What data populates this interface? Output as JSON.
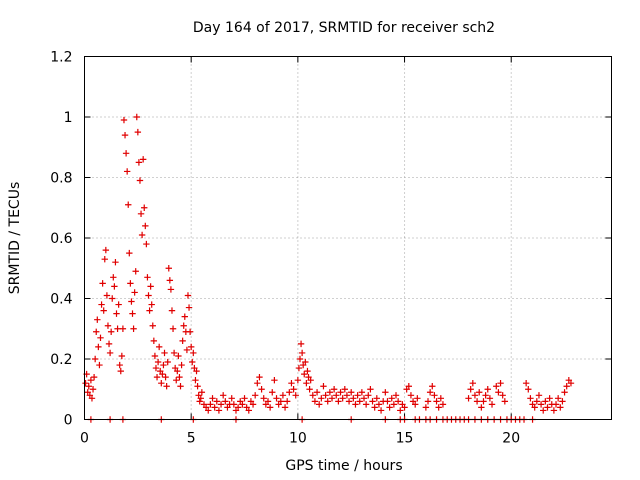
{
  "chart_data": {
    "type": "scatter",
    "title": "Day 164 of 2017, SRMTID for receiver sch2",
    "xlabel": "GPS time / hours",
    "ylabel": "SRMTID / TECUs",
    "xlim": [
      0,
      24.7
    ],
    "ylim": [
      0,
      1.2
    ],
    "xticks": [
      0,
      5,
      10,
      15,
      20
    ],
    "xtick_labels": [
      "0",
      "5",
      "10",
      "15",
      "20"
    ],
    "yticks": [
      0,
      0.2,
      0.4,
      0.6,
      0.8,
      1.0,
      1.2
    ],
    "ytick_labels": [
      "0",
      "0.2",
      "0.4",
      "0.6",
      "0.8",
      "1",
      "1.2"
    ],
    "grid": true,
    "marker": "+",
    "marker_color": "#e00000",
    "series": [
      {
        "name": "SRMTID",
        "points": [
          [
            0.05,
            0.12
          ],
          [
            0.1,
            0.15
          ],
          [
            0.15,
            0.09
          ],
          [
            0.2,
            0.11
          ],
          [
            0.25,
            0.08
          ],
          [
            0.3,
            0.13
          ],
          [
            0.35,
            0.07
          ],
          [
            0.4,
            0.1
          ],
          [
            0.45,
            0.14
          ],
          [
            0.5,
            0.2
          ],
          [
            0.55,
            0.29
          ],
          [
            0.6,
            0.33
          ],
          [
            0.65,
            0.24
          ],
          [
            0.7,
            0.18
          ],
          [
            0.75,
            0.27
          ],
          [
            0.8,
            0.38
          ],
          [
            0.85,
            0.45
          ],
          [
            0.9,
            0.36
          ],
          [
            0.95,
            0.53
          ],
          [
            1.0,
            0.56
          ],
          [
            1.05,
            0.41
          ],
          [
            1.1,
            0.31
          ],
          [
            1.15,
            0.25
          ],
          [
            1.2,
            0.22
          ],
          [
            1.25,
            0.29
          ],
          [
            1.3,
            0.4
          ],
          [
            1.35,
            0.47
          ],
          [
            1.4,
            0.44
          ],
          [
            1.45,
            0.52
          ],
          [
            1.5,
            0.35
          ],
          [
            1.55,
            0.3
          ],
          [
            1.6,
            0.38
          ],
          [
            1.65,
            0.18
          ],
          [
            1.7,
            0.16
          ],
          [
            1.75,
            0.21
          ],
          [
            1.8,
            0.3
          ],
          [
            1.85,
            0.99
          ],
          [
            1.9,
            0.94
          ],
          [
            1.95,
            0.88
          ],
          [
            2.0,
            0.82
          ],
          [
            2.05,
            0.71
          ],
          [
            2.1,
            0.55
          ],
          [
            2.15,
            0.45
          ],
          [
            2.2,
            0.39
          ],
          [
            2.25,
            0.35
          ],
          [
            2.3,
            0.3
          ],
          [
            2.35,
            0.42
          ],
          [
            2.4,
            0.49
          ],
          [
            2.45,
            1.0
          ],
          [
            2.5,
            0.95
          ],
          [
            2.55,
            0.85
          ],
          [
            2.6,
            0.79
          ],
          [
            2.65,
            0.68
          ],
          [
            2.7,
            0.61
          ],
          [
            2.75,
            0.86
          ],
          [
            2.8,
            0.7
          ],
          [
            2.85,
            0.64
          ],
          [
            2.9,
            0.58
          ],
          [
            2.95,
            0.47
          ],
          [
            3.0,
            0.41
          ],
          [
            3.05,
            0.36
          ],
          [
            3.1,
            0.44
          ],
          [
            3.15,
            0.38
          ],
          [
            3.2,
            0.31
          ],
          [
            3.25,
            0.26
          ],
          [
            3.3,
            0.21
          ],
          [
            3.35,
            0.17
          ],
          [
            3.4,
            0.14
          ],
          [
            3.45,
            0.19
          ],
          [
            3.5,
            0.24
          ],
          [
            3.55,
            0.16
          ],
          [
            3.6,
            0.12
          ],
          [
            3.65,
            0.15
          ],
          [
            3.7,
            0.18
          ],
          [
            3.75,
            0.22
          ],
          [
            3.8,
            0.14
          ],
          [
            3.85,
            0.11
          ],
          [
            3.9,
            0.19
          ],
          [
            3.95,
            0.5
          ],
          [
            4.0,
            0.46
          ],
          [
            4.05,
            0.43
          ],
          [
            4.1,
            0.36
          ],
          [
            4.15,
            0.3
          ],
          [
            4.2,
            0.22
          ],
          [
            4.25,
            0.17
          ],
          [
            4.3,
            0.13
          ],
          [
            4.35,
            0.16
          ],
          [
            4.4,
            0.21
          ],
          [
            4.45,
            0.14
          ],
          [
            4.5,
            0.11
          ],
          [
            4.55,
            0.18
          ],
          [
            4.6,
            0.26
          ],
          [
            4.65,
            0.31
          ],
          [
            4.7,
            0.34
          ],
          [
            4.75,
            0.29
          ],
          [
            4.8,
            0.23
          ],
          [
            4.85,
            0.41
          ],
          [
            4.9,
            0.37
          ],
          [
            4.95,
            0.29
          ],
          [
            5.0,
            0.24
          ],
          [
            5.05,
            0.19
          ],
          [
            5.1,
            0.22
          ],
          [
            5.15,
            0.17
          ],
          [
            5.2,
            0.13
          ],
          [
            5.25,
            0.16
          ],
          [
            5.3,
            0.11
          ],
          [
            5.35,
            0.08
          ],
          [
            5.4,
            0.06
          ],
          [
            5.45,
            0.07
          ],
          [
            5.5,
            0.09
          ],
          [
            5.6,
            0.05
          ],
          [
            5.7,
            0.04
          ],
          [
            5.8,
            0.03
          ],
          [
            5.9,
            0.05
          ],
          [
            6.0,
            0.07
          ],
          [
            6.1,
            0.04
          ],
          [
            6.2,
            0.06
          ],
          [
            6.3,
            0.03
          ],
          [
            6.4,
            0.05
          ],
          [
            6.5,
            0.08
          ],
          [
            6.6,
            0.06
          ],
          [
            6.7,
            0.04
          ],
          [
            6.8,
            0.05
          ],
          [
            6.9,
            0.07
          ],
          [
            7.0,
            0.05
          ],
          [
            7.1,
            0.03
          ],
          [
            7.2,
            0.04
          ],
          [
            7.3,
            0.06
          ],
          [
            7.4,
            0.05
          ],
          [
            7.5,
            0.07
          ],
          [
            7.6,
            0.04
          ],
          [
            7.7,
            0.03
          ],
          [
            7.8,
            0.06
          ],
          [
            7.9,
            0.05
          ],
          [
            8.0,
            0.08
          ],
          [
            8.1,
            0.12
          ],
          [
            8.2,
            0.14
          ],
          [
            8.3,
            0.1
          ],
          [
            8.4,
            0.07
          ],
          [
            8.5,
            0.05
          ],
          [
            8.6,
            0.06
          ],
          [
            8.7,
            0.04
          ],
          [
            8.8,
            0.09
          ],
          [
            8.9,
            0.13
          ],
          [
            9.0,
            0.07
          ],
          [
            9.1,
            0.05
          ],
          [
            9.2,
            0.06
          ],
          [
            9.3,
            0.08
          ],
          [
            9.4,
            0.04
          ],
          [
            9.5,
            0.06
          ],
          [
            9.6,
            0.09
          ],
          [
            9.7,
            0.12
          ],
          [
            9.8,
            0.1
          ],
          [
            9.9,
            0.08
          ],
          [
            10.0,
            0.13
          ],
          [
            10.05,
            0.17
          ],
          [
            10.1,
            0.2
          ],
          [
            10.15,
            0.25
          ],
          [
            10.2,
            0.22
          ],
          [
            10.25,
            0.18
          ],
          [
            10.3,
            0.15
          ],
          [
            10.35,
            0.19
          ],
          [
            10.4,
            0.12
          ],
          [
            10.45,
            0.16
          ],
          [
            10.5,
            0.14
          ],
          [
            10.55,
            0.1
          ],
          [
            10.6,
            0.13
          ],
          [
            10.7,
            0.08
          ],
          [
            10.8,
            0.06
          ],
          [
            10.9,
            0.09
          ],
          [
            11.0,
            0.05
          ],
          [
            11.1,
            0.07
          ],
          [
            11.2,
            0.11
          ],
          [
            11.3,
            0.08
          ],
          [
            11.4,
            0.06
          ],
          [
            11.5,
            0.09
          ],
          [
            11.6,
            0.07
          ],
          [
            11.7,
            0.1
          ],
          [
            11.8,
            0.08
          ],
          [
            11.9,
            0.06
          ],
          [
            12.0,
            0.09
          ],
          [
            12.1,
            0.07
          ],
          [
            12.2,
            0.1
          ],
          [
            12.3,
            0.08
          ],
          [
            12.4,
            0.06
          ],
          [
            12.5,
            0.09
          ],
          [
            12.6,
            0.07
          ],
          [
            12.7,
            0.05
          ],
          [
            12.8,
            0.08
          ],
          [
            12.9,
            0.06
          ],
          [
            13.0,
            0.09
          ],
          [
            13.1,
            0.07
          ],
          [
            13.2,
            0.05
          ],
          [
            13.3,
            0.08
          ],
          [
            13.4,
            0.1
          ],
          [
            13.5,
            0.06
          ],
          [
            13.6,
            0.04
          ],
          [
            13.7,
            0.07
          ],
          [
            13.8,
            0.05
          ],
          [
            13.9,
            0.03
          ],
          [
            14.0,
            0.06
          ],
          [
            14.1,
            0.09
          ],
          [
            14.2,
            0.06
          ],
          [
            14.3,
            0.04
          ],
          [
            14.4,
            0.07
          ],
          [
            14.5,
            0.05
          ],
          [
            14.6,
            0.08
          ],
          [
            14.7,
            0.06
          ],
          [
            14.8,
            0.03
          ],
          [
            14.9,
            0.05
          ],
          [
            15.0,
            0.04
          ],
          [
            15.1,
            0.1
          ],
          [
            15.2,
            0.11
          ],
          [
            15.3,
            0.08
          ],
          [
            15.4,
            0.06
          ],
          [
            15.5,
            0.05
          ],
          [
            15.6,
            0.07
          ],
          [
            16.0,
            0.04
          ],
          [
            16.1,
            0.06
          ],
          [
            16.2,
            0.09
          ],
          [
            16.3,
            0.11
          ],
          [
            16.4,
            0.08
          ],
          [
            16.5,
            0.06
          ],
          [
            16.6,
            0.04
          ],
          [
            16.7,
            0.07
          ],
          [
            16.8,
            0.05
          ],
          [
            18.0,
            0.07
          ],
          [
            18.1,
            0.1
          ],
          [
            18.2,
            0.12
          ],
          [
            18.3,
            0.08
          ],
          [
            18.4,
            0.06
          ],
          [
            18.5,
            0.09
          ],
          [
            18.6,
            0.04
          ],
          [
            18.7,
            0.06
          ],
          [
            18.8,
            0.08
          ],
          [
            18.9,
            0.1
          ],
          [
            19.0,
            0.07
          ],
          [
            19.1,
            0.05
          ],
          [
            19.3,
            0.11
          ],
          [
            19.4,
            0.09
          ],
          [
            19.5,
            0.12
          ],
          [
            19.6,
            0.08
          ],
          [
            19.7,
            0.06
          ],
          [
            20.7,
            0.12
          ],
          [
            20.8,
            0.1
          ],
          [
            20.9,
            0.07
          ],
          [
            21.0,
            0.05
          ],
          [
            21.1,
            0.04
          ],
          [
            21.2,
            0.06
          ],
          [
            21.3,
            0.08
          ],
          [
            21.4,
            0.05
          ],
          [
            21.5,
            0.03
          ],
          [
            21.6,
            0.06
          ],
          [
            21.7,
            0.04
          ],
          [
            21.8,
            0.07
          ],
          [
            21.9,
            0.05
          ],
          [
            22.0,
            0.03
          ],
          [
            22.1,
            0.05
          ],
          [
            22.2,
            0.07
          ],
          [
            22.3,
            0.04
          ],
          [
            22.4,
            0.06
          ],
          [
            22.5,
            0.09
          ],
          [
            22.6,
            0.11
          ],
          [
            22.7,
            0.13
          ],
          [
            22.8,
            0.12
          ]
        ],
        "zero_points_x": [
          0.3,
          1.2,
          1.8,
          3.6,
          5.1,
          7.1,
          10.2,
          12.5,
          14.1,
          14.8,
          15.0,
          15.5,
          15.7,
          16.0,
          16.2,
          16.5,
          16.8,
          17.0,
          17.2,
          17.4,
          17.6,
          17.8,
          18.0,
          18.3,
          18.6,
          18.9,
          19.2,
          19.5,
          19.8,
          20.0,
          20.2,
          20.4,
          20.6,
          21.0
        ]
      }
    ]
  }
}
